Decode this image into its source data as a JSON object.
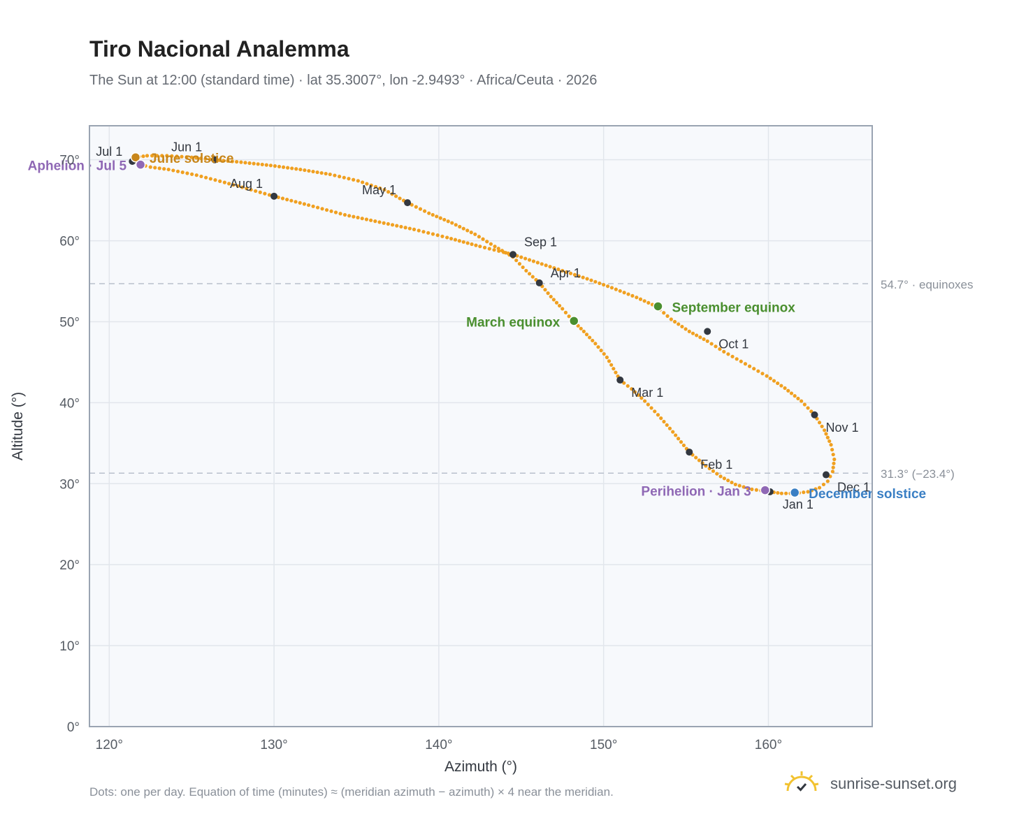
{
  "title": "Tiro Nacional Analemma",
  "subtitle": "The Sun at 12:00 (standard time) · lat 35.3007°, lon -2.9493° · Africa/Ceuta · 2026",
  "footnote": "Dots: one per day. Equation of time (minutes) ≈ (meridian azimuth − azimuth) × 4 near the meridian.",
  "brand": {
    "text": "sunrise-sunset.org",
    "icon": "sun-logo-icon"
  },
  "colors": {
    "path": "#f0a020",
    "month": "#333840",
    "equinox": "#4a8f2f",
    "solstice_june": "#c8861a",
    "solstice_dec": "#3a7fc4",
    "apsis": "#8f68b5",
    "refline": "#b8c0cc",
    "plot_bg": "#f7f9fc",
    "grid": "#e2e6ec",
    "frame": "#9aa4b2"
  },
  "chart_data": {
    "type": "scatter",
    "xlabel": "Azimuth (°)",
    "ylabel": "Altitude (°)",
    "xlim": [
      118.8,
      166.3
    ],
    "ylim": [
      0,
      74.2
    ],
    "x_ticks": [
      120,
      130,
      140,
      150,
      160
    ],
    "y_ticks": [
      0,
      10,
      20,
      30,
      40,
      50,
      60,
      70
    ],
    "x_tick_labels": [
      "120°",
      "130°",
      "140°",
      "150°",
      "160°"
    ],
    "y_tick_labels": [
      "0°",
      "10°",
      "20°",
      "30°",
      "40°",
      "50°",
      "60°",
      "70°"
    ],
    "grid": true,
    "analemma": [
      [
        160.1,
        29.0
      ],
      [
        160.8,
        28.8
      ],
      [
        161.6,
        28.8
      ],
      [
        162.4,
        29.0
      ],
      [
        163.1,
        29.5
      ],
      [
        163.6,
        30.3
      ],
      [
        163.9,
        31.5
      ],
      [
        164.0,
        33.0
      ],
      [
        163.8,
        34.8
      ],
      [
        163.4,
        36.6
      ],
      [
        162.8,
        38.5
      ],
      [
        162.0,
        40.2
      ],
      [
        161.0,
        41.8
      ],
      [
        159.9,
        43.3
      ],
      [
        158.6,
        44.8
      ],
      [
        157.3,
        46.3
      ],
      [
        156.3,
        47.6
      ],
      [
        155.2,
        48.8
      ],
      [
        154.1,
        50.3
      ],
      [
        153.2,
        51.9
      ],
      [
        152.0,
        53.0
      ],
      [
        150.5,
        54.2
      ],
      [
        149.0,
        55.3
      ],
      [
        147.5,
        56.3
      ],
      [
        146.0,
        57.3
      ],
      [
        144.5,
        58.3
      ],
      [
        142.5,
        59.3
      ],
      [
        140.5,
        60.4
      ],
      [
        138.5,
        61.4
      ],
      [
        136.4,
        62.3
      ],
      [
        134.3,
        63.2
      ],
      [
        132.1,
        64.4
      ],
      [
        130.0,
        65.5
      ],
      [
        128.6,
        66.3
      ],
      [
        127.0,
        67.2
      ],
      [
        125.3,
        68.1
      ],
      [
        123.6,
        68.8
      ],
      [
        122.5,
        69.1
      ],
      [
        121.9,
        69.4
      ],
      [
        121.5,
        69.9
      ],
      [
        121.6,
        70.3
      ],
      [
        122.3,
        70.5
      ],
      [
        123.5,
        70.5
      ],
      [
        125.0,
        70.3
      ],
      [
        126.4,
        70.0
      ],
      [
        128.0,
        69.7
      ],
      [
        129.8,
        69.3
      ],
      [
        131.6,
        68.8
      ],
      [
        133.4,
        68.2
      ],
      [
        135.1,
        67.4
      ],
      [
        136.7,
        66.3
      ],
      [
        138.1,
        64.7
      ],
      [
        139.4,
        63.4
      ],
      [
        140.8,
        62.2
      ],
      [
        142.2,
        60.8
      ],
      [
        143.4,
        59.3
      ],
      [
        144.5,
        58.0
      ],
      [
        145.3,
        56.3
      ],
      [
        146.1,
        54.8
      ],
      [
        146.8,
        53.1
      ],
      [
        147.5,
        51.6
      ],
      [
        148.1,
        50.2
      ],
      [
        148.8,
        48.8
      ],
      [
        149.5,
        47.3
      ],
      [
        150.2,
        45.6
      ],
      [
        151.0,
        42.8
      ],
      [
        151.7,
        41.7
      ],
      [
        152.5,
        40.2
      ],
      [
        153.3,
        38.5
      ],
      [
        154.2,
        36.4
      ],
      [
        155.2,
        33.9
      ],
      [
        156.2,
        32.2
      ],
      [
        157.1,
        30.9
      ],
      [
        158.0,
        29.9
      ],
      [
        159.0,
        29.3
      ],
      [
        160.1,
        29.0
      ]
    ],
    "months": [
      {
        "label": "Jan 1",
        "x": 160.1,
        "y": 29.0
      },
      {
        "label": "Feb 1",
        "x": 155.2,
        "y": 33.9
      },
      {
        "label": "Mar 1",
        "x": 151.0,
        "y": 42.8
      },
      {
        "label": "Apr 1",
        "x": 146.1,
        "y": 54.8
      },
      {
        "label": "May 1",
        "x": 138.1,
        "y": 64.7
      },
      {
        "label": "Jun 1",
        "x": 126.4,
        "y": 70.0
      },
      {
        "label": "Jul 1",
        "x": 121.4,
        "y": 69.8
      },
      {
        "label": "Aug 1",
        "x": 130.0,
        "y": 65.5
      },
      {
        "label": "Sep 1",
        "x": 144.5,
        "y": 58.3
      },
      {
        "label": "Oct 1",
        "x": 156.3,
        "y": 48.8
      },
      {
        "label": "Nov 1",
        "x": 162.8,
        "y": 38.5
      },
      {
        "label": "Dec 1",
        "x": 163.5,
        "y": 31.1
      }
    ],
    "events": [
      {
        "label": "March equinox",
        "x": 148.2,
        "y": 50.1,
        "kind": "equinox"
      },
      {
        "label": "September equinox",
        "x": 153.3,
        "y": 51.9,
        "kind": "equinox"
      },
      {
        "label": "June solstice",
        "x": 121.6,
        "y": 70.3,
        "kind": "solstice_june"
      },
      {
        "label": "December solstice",
        "x": 161.6,
        "y": 28.9,
        "kind": "solstice_dec"
      },
      {
        "label": "Aphelion · Jul 5",
        "x": 121.9,
        "y": 69.4,
        "kind": "apsis"
      },
      {
        "label": "Perihelion · Jan 3",
        "x": 159.8,
        "y": 29.2,
        "kind": "apsis"
      }
    ],
    "reference_lines": [
      {
        "y": 54.7,
        "label": "54.7° · equinoxes"
      },
      {
        "y": 31.3,
        "label": "31.3° (−23.4°)"
      }
    ]
  }
}
